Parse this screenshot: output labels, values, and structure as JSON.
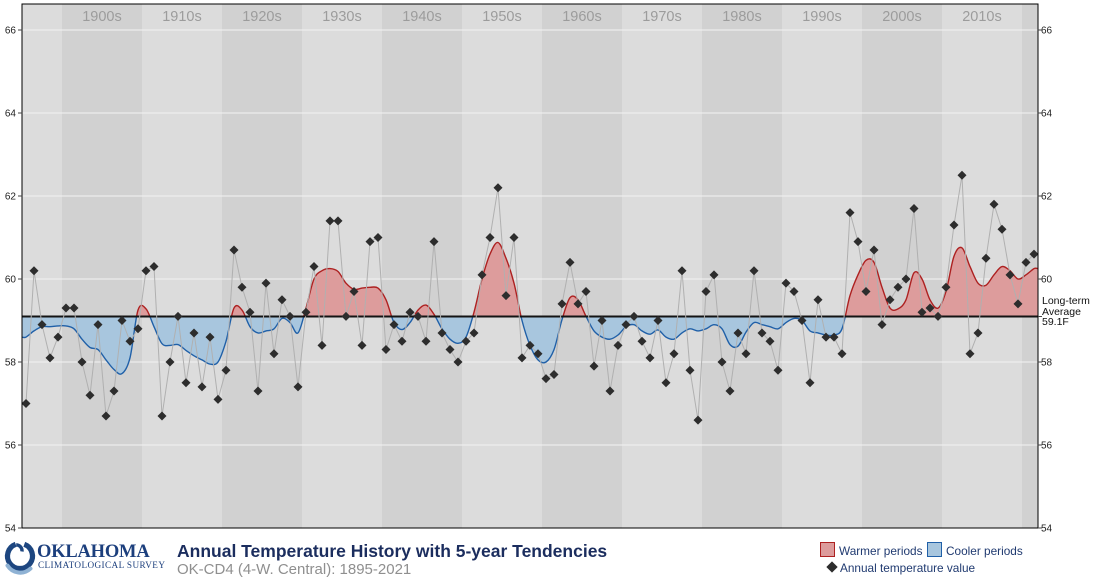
{
  "plot": {
    "decade_labels": [
      "1900s",
      "1910s",
      "1920s",
      "1930s",
      "1940s",
      "1950s",
      "1960s",
      "1970s",
      "1980s",
      "1990s",
      "2000s",
      "2010s"
    ],
    "y_ticks": [
      54,
      56,
      58,
      60,
      62,
      64,
      66
    ],
    "gridline_values": [
      56,
      58,
      60,
      62,
      64,
      66
    ],
    "average_label": {
      "line1": "Long-term",
      "line2": "Average",
      "line3": "59.1F"
    },
    "colors": {
      "band_light": "#dcdcdc",
      "band_dark": "#d1d1d1",
      "gridline": "#f2f2f2",
      "warm_fill": "#dd9c9c",
      "warm_line": "#ad2121",
      "cool_fill": "#a8c6de",
      "cool_line": "#2060a8",
      "average_line": "#141414",
      "annual_line": "#b0b0b0",
      "annual_marker": "#2d2d2d",
      "decade_label": "#9c9c9c",
      "axis_label": "#222222"
    }
  },
  "footer": {
    "logo_line1": "OKLAHOMA",
    "logo_line2": "CLIMATOLOGICAL SURVEY",
    "title": "Annual Temperature History with 5-year Tendencies",
    "subtitle": "OK-CD4 (4-W. Central): 1895-2021",
    "brand_color": "#1d4680"
  },
  "legend": {
    "warmer": "Warmer periods",
    "cooler": "Cooler periods",
    "annual": "Annual temperature value"
  },
  "chart_data": {
    "type": "line",
    "title": "Annual Temperature History with 5-year Tendencies",
    "region": "OK-CD4 (4-W. Central)",
    "year_start": 1895,
    "year_end": 2021,
    "ylim": [
      54,
      66
    ],
    "baseline_average": 59.1,
    "baseline_label": "Long-term Average 59.1F",
    "series": [
      {
        "name": "Annual temperature value",
        "style": "scatter-diamond",
        "values": [
          57.0,
          60.2,
          58.9,
          58.1,
          58.6,
          59.3,
          59.3,
          58.0,
          57.2,
          58.9,
          56.7,
          57.3,
          59.0,
          58.5,
          58.8,
          60.2,
          60.3,
          56.7,
          58.0,
          59.1,
          57.5,
          58.7,
          57.4,
          58.6,
          57.1,
          57.8,
          60.7,
          59.8,
          59.2,
          57.3,
          59.9,
          58.2,
          59.5,
          59.1,
          57.4,
          59.2,
          60.3,
          58.4,
          61.4,
          61.4,
          59.1,
          59.7,
          58.4,
          60.9,
          61.0,
          58.3,
          58.9,
          58.5,
          59.2,
          59.1,
          58.5,
          60.9,
          58.7,
          58.3,
          58.0,
          58.5,
          58.7,
          60.1,
          61.0,
          62.2,
          59.6,
          61.0,
          58.1,
          58.4,
          58.2,
          57.6,
          57.7,
          59.4,
          60.4,
          59.4,
          59.7,
          57.9,
          59.0,
          57.3,
          58.4,
          58.9,
          59.1,
          58.5,
          58.1,
          59.0,
          57.5,
          58.2,
          60.2,
          57.8,
          56.6,
          59.7,
          60.1,
          58.0,
          57.3,
          58.7,
          58.2,
          60.2,
          58.7,
          58.5,
          57.8,
          59.9,
          59.7,
          59.0,
          57.5,
          59.5,
          58.6,
          58.6,
          58.2,
          61.6,
          60.9,
          59.7,
          60.7,
          58.9,
          59.5,
          59.8,
          60.0,
          61.7,
          59.2,
          59.3,
          59.1,
          59.8,
          61.3,
          62.5,
          58.2,
          58.7,
          60.5,
          61.8,
          61.2,
          60.1,
          59.4,
          60.4,
          60.6
        ]
      },
      {
        "name": "5-year tendency",
        "style": "area",
        "values": [
          58.6,
          58.75,
          58.85,
          58.85,
          58.87,
          58.87,
          58.8,
          58.55,
          58.35,
          58.3,
          58.05,
          57.82,
          57.72,
          58.1,
          59.25,
          59.28,
          58.85,
          58.44,
          58.4,
          58.42,
          58.28,
          58.15,
          58.05,
          57.95,
          58.0,
          58.5,
          59.3,
          59.25,
          58.85,
          58.7,
          58.75,
          58.8,
          59.05,
          58.95,
          58.7,
          59.3,
          60.0,
          60.2,
          60.25,
          60.18,
          59.9,
          59.75,
          59.78,
          59.8,
          59.78,
          59.5,
          58.95,
          58.78,
          58.95,
          59.25,
          59.37,
          59.15,
          58.8,
          58.55,
          58.45,
          58.6,
          59.2,
          60.0,
          60.6,
          60.88,
          60.5,
          59.9,
          59.0,
          58.4,
          58.05,
          58.0,
          58.3,
          59.02,
          59.55,
          59.5,
          59.1,
          58.75,
          58.6,
          58.55,
          58.65,
          58.85,
          58.9,
          58.75,
          58.67,
          58.77,
          58.6,
          58.55,
          58.7,
          58.8,
          58.75,
          58.8,
          58.9,
          58.8,
          58.42,
          58.38,
          58.72,
          58.95,
          58.9,
          58.85,
          58.8,
          58.95,
          59.05,
          59.0,
          58.75,
          58.7,
          58.65,
          58.65,
          58.8,
          59.6,
          60.1,
          60.45,
          60.4,
          59.8,
          59.3,
          59.28,
          59.5,
          60.15,
          60.0,
          59.5,
          59.3,
          59.7,
          60.55,
          60.75,
          60.3,
          59.9,
          59.85,
          60.1,
          60.3,
          60.2,
          60.0,
          60.1,
          60.25
        ]
      }
    ]
  }
}
